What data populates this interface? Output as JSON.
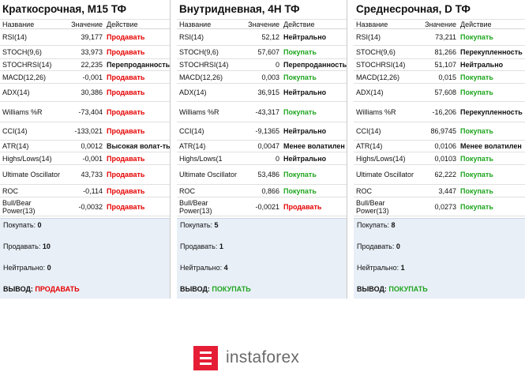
{
  "headers": {
    "name": "Название",
    "value": "Значение",
    "action": "Действие"
  },
  "panels": [
    {
      "title": "Краткосрочная, М15 ТФ",
      "rows": [
        {
          "name": "RSI(14)",
          "value": "39,177",
          "action": "Продавать",
          "kind": "sell"
        },
        {
          "name": "STOCH(9,6)",
          "value": "33,973",
          "action": "Продавать",
          "kind": "sell"
        },
        {
          "name": "STOCHRSI(14)",
          "value": "22,235",
          "action": "Перепроданность",
          "kind": "neutral"
        },
        {
          "name": "MACD(12,26)",
          "value": "-0,001",
          "action": "Продавать",
          "kind": "sell"
        },
        {
          "name": "ADX(14)",
          "value": "30,386",
          "action": "Продавать",
          "kind": "sell"
        },
        {
          "name": "Williams %R",
          "value": "-73,404",
          "action": "Продавать",
          "kind": "sell"
        },
        {
          "name": "CCI(14)",
          "value": "-133,021",
          "action": "Продавать",
          "kind": "sell"
        },
        {
          "name": "ATR(14)",
          "value": "0,0012",
          "action": "Высокая волат-ть",
          "kind": "neutral"
        },
        {
          "name": "Highs/Lows(14)",
          "value": "-0,001",
          "action": "Продавать",
          "kind": "sell"
        },
        {
          "name": "Ultimate Oscillator",
          "value": "43,733",
          "action": "Продавать",
          "kind": "sell"
        },
        {
          "name": "ROC",
          "value": "-0,114",
          "action": "Продавать",
          "kind": "sell"
        },
        {
          "name": "Bull/Bear Power(13)",
          "value": "-0,0032",
          "action": "Продавать",
          "kind": "sell"
        }
      ],
      "summary": {
        "buy_label": "Покупать:",
        "buy_count": "0",
        "sell_label": "Продавать:",
        "sell_count": "10",
        "neutral_label": "Нейтрально:",
        "neutral_count": "0",
        "conclusion_label": "ВЫВОД:",
        "conclusion": "ПРОДАВАТЬ",
        "conclusion_kind": "sell"
      }
    },
    {
      "title": "Внутридневная, 4Н ТФ",
      "rows": [
        {
          "name": "RSI(14)",
          "value": "52,12",
          "action": "Нейтрально",
          "kind": "neutral"
        },
        {
          "name": "STOCH(9,6)",
          "value": "57,607",
          "action": "Покупать",
          "kind": "buy"
        },
        {
          "name": "STOCHRSI(14)",
          "value": "0",
          "action": "Перепроданность",
          "kind": "neutral"
        },
        {
          "name": "MACD(12,26)",
          "value": "0,003",
          "action": "Покупать",
          "kind": "buy"
        },
        {
          "name": "ADX(14)",
          "value": "36,915",
          "action": "Нейтрально",
          "kind": "neutral"
        },
        {
          "name": "Williams %R",
          "value": "-43,317",
          "action": "Покупать",
          "kind": "buy"
        },
        {
          "name": "CCI(14)",
          "value": "-9,1365",
          "action": "Нейтрально",
          "kind": "neutral"
        },
        {
          "name": "ATR(14)",
          "value": "0,0047",
          "action": "Менее волатилен",
          "kind": "neutral"
        },
        {
          "name": "Highs/Lows(1",
          "value": "0",
          "action": "Нейтрально",
          "kind": "neutral"
        },
        {
          "name": "Ultimate Oscillator",
          "value": "53,486",
          "action": "Покупать",
          "kind": "buy"
        },
        {
          "name": "ROC",
          "value": "0,866",
          "action": "Покупать",
          "kind": "buy"
        },
        {
          "name": "Bull/Bear Power(13)",
          "value": "-0,0021",
          "action": "Продавать",
          "kind": "sell"
        }
      ],
      "summary": {
        "buy_label": "Покупать:",
        "buy_count": "5",
        "sell_label": "Продавать:",
        "sell_count": "1",
        "neutral_label": "Нейтрально:",
        "neutral_count": "4",
        "conclusion_label": "ВЫВОД:",
        "conclusion": "ПОКУПАТЬ",
        "conclusion_kind": "buy"
      }
    },
    {
      "title": "Среднесрочная, D ТФ",
      "rows": [
        {
          "name": "RSI(14)",
          "value": "73,211",
          "action": "Покупать",
          "kind": "buy"
        },
        {
          "name": "STOCH(9,6)",
          "value": "81,266",
          "action": "Перекупленность",
          "kind": "neutral"
        },
        {
          "name": "STOCHRSI(14)",
          "value": "51,107",
          "action": "Нейтрально",
          "kind": "neutral"
        },
        {
          "name": "MACD(12,26)",
          "value": "0,015",
          "action": "Покупать",
          "kind": "buy"
        },
        {
          "name": "ADX(14)",
          "value": "57,608",
          "action": "Покупать",
          "kind": "buy"
        },
        {
          "name": "Williams %R",
          "value": "-16,206",
          "action": "Перекупленность",
          "kind": "neutral"
        },
        {
          "name": "CCI(14)",
          "value": "86,9745",
          "action": "Покупать",
          "kind": "buy"
        },
        {
          "name": "ATR(14)",
          "value": "0,0106",
          "action": "Менее волатилен",
          "kind": "neutral"
        },
        {
          "name": "Highs/Lows(14)",
          "value": "0,0103",
          "action": "Покупать",
          "kind": "buy"
        },
        {
          "name": "Ultimate Oscillator",
          "value": "62,222",
          "action": "Покупать",
          "kind": "buy"
        },
        {
          "name": "ROC",
          "value": "3,447",
          "action": "Покупать",
          "kind": "buy"
        },
        {
          "name": "Bull/Bear Power(13)",
          "value": "0,0273",
          "action": "Покупать",
          "kind": "buy"
        }
      ],
      "summary": {
        "buy_label": "Покупать:",
        "buy_count": "8",
        "sell_label": "Продавать:",
        "sell_count": "0",
        "neutral_label": "Нейтрально:",
        "neutral_count": "1",
        "conclusion_label": "ВЫВОД:",
        "conclusion": "ПОКУПАТЬ",
        "conclusion_kind": "buy"
      }
    }
  ],
  "logo": {
    "text": "instaforex",
    "icon": "instaforex-logo-icon",
    "color": "#e51e36"
  }
}
